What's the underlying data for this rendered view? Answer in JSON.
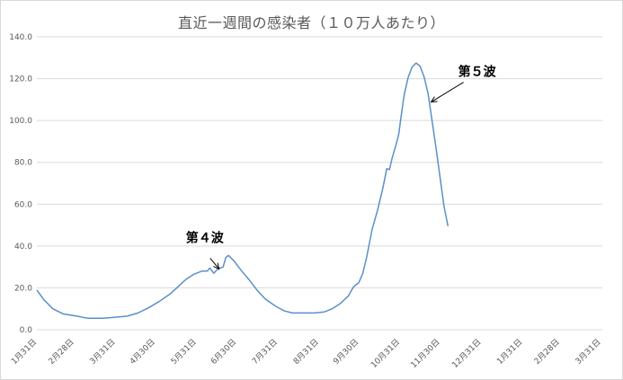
{
  "chart_data": {
    "type": "line",
    "title": "直近一週間の感染者（１０万人あたり）",
    "xlabel": "",
    "ylabel": "",
    "ylim": [
      0,
      140
    ],
    "y_ticks": [
      "0.0",
      "20.0",
      "40.0",
      "60.0",
      "80.0",
      "100.0",
      "120.0",
      "140.0"
    ],
    "x_ticks": [
      "1月31日",
      "2月28日",
      "3月31日",
      "4月30日",
      "5月31日",
      "6月30日",
      "7月31日",
      "8月31日",
      "9月30日",
      "10月31日",
      "11月30日",
      "12月31日",
      "1月31日",
      "2月28日",
      "3月31日"
    ],
    "grid": true,
    "legend": "none",
    "line_color": "#5b8fc9",
    "series": [
      {
        "values": [
          [
            0,
            19.0
          ],
          [
            5,
            14.5
          ],
          [
            12,
            10.0
          ],
          [
            20,
            7.5
          ],
          [
            30,
            6.5
          ],
          [
            38,
            5.5
          ],
          [
            50,
            5.5
          ],
          [
            60,
            6.0
          ],
          [
            68,
            6.5
          ],
          [
            76,
            8.0
          ],
          [
            84,
            10.5
          ],
          [
            92,
            13.5
          ],
          [
            100,
            17.0
          ],
          [
            106,
            20.5
          ],
          [
            112,
            24.0
          ],
          [
            118,
            26.5
          ],
          [
            124,
            28.0
          ],
          [
            128,
            28.0
          ],
          [
            130,
            29.5
          ],
          [
            133,
            27.0
          ],
          [
            136,
            29.0
          ],
          [
            140,
            30.0
          ],
          [
            142,
            34.5
          ],
          [
            144,
            35.5
          ],
          [
            148,
            33.0
          ],
          [
            154,
            28.0
          ],
          [
            160,
            23.5
          ],
          [
            166,
            18.5
          ],
          [
            172,
            14.5
          ],
          [
            180,
            11.0
          ],
          [
            186,
            9.0
          ],
          [
            192,
            8.0
          ],
          [
            200,
            8.0
          ],
          [
            208,
            8.0
          ],
          [
            216,
            8.5
          ],
          [
            222,
            10.0
          ],
          [
            228,
            12.5
          ],
          [
            234,
            16.0
          ],
          [
            238,
            20.5
          ],
          [
            242,
            22.5
          ],
          [
            245,
            27.0
          ],
          [
            248,
            35.0
          ],
          [
            252,
            48.0
          ],
          [
            256,
            57.0
          ],
          [
            260,
            67.5
          ],
          [
            263,
            77.0
          ],
          [
            265,
            76.5
          ],
          [
            267,
            82.0
          ],
          [
            270,
            88.5
          ],
          [
            272,
            93.5
          ],
          [
            274,
            103.0
          ],
          [
            276,
            112.0
          ],
          [
            279,
            120.5
          ],
          [
            282,
            125.5
          ],
          [
            285,
            127.5
          ],
          [
            288,
            126.0
          ],
          [
            291,
            121.0
          ],
          [
            294,
            113.0
          ],
          [
            297,
            100.0
          ],
          [
            300,
            87.0
          ],
          [
            303,
            73.0
          ],
          [
            306,
            59.0
          ],
          [
            309,
            49.5
          ]
        ]
      }
    ],
    "annotations": [
      {
        "text": "第４波",
        "points_to_x": 137,
        "points_to_y": 29.0
      },
      {
        "text": "第５波",
        "points_to_x": 295,
        "points_to_y": 108.0
      }
    ]
  }
}
